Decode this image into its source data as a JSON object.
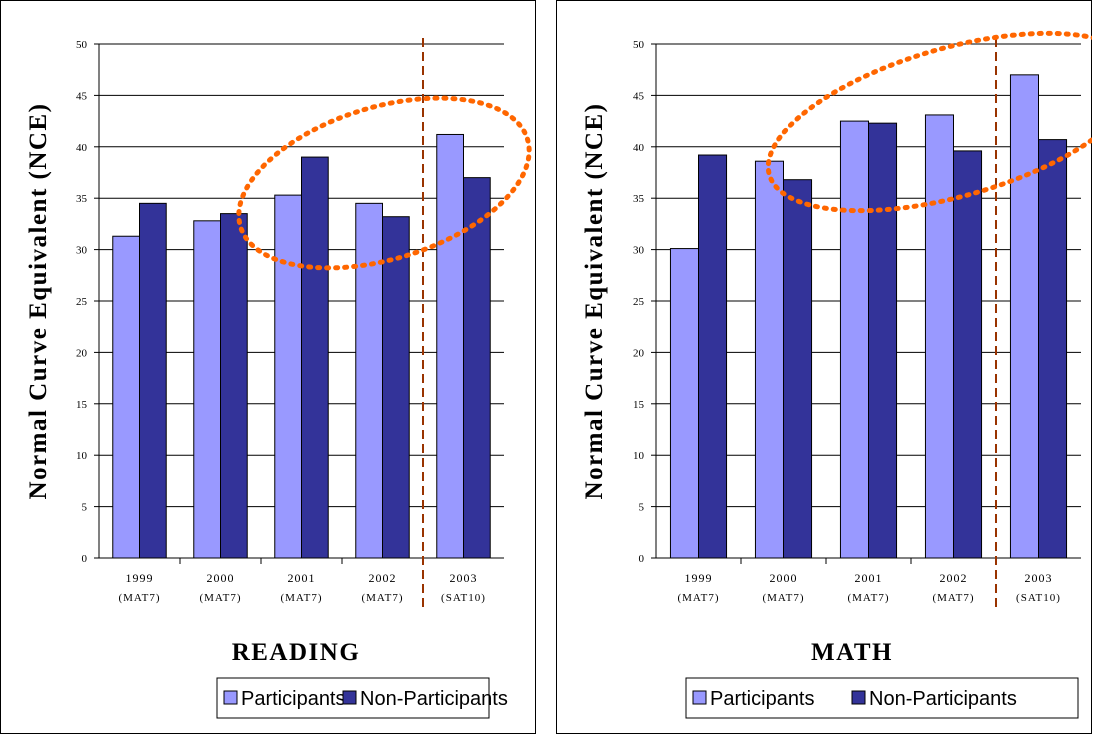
{
  "colors": {
    "participants": "#9999ff",
    "non_participants": "#333399",
    "divider": "#993300",
    "highlight_ellipse": "#ff6600",
    "grid": "#000000"
  },
  "legend": {
    "participants": "Participants",
    "non_participants": "Non-Participants"
  },
  "chart_data": [
    {
      "type": "bar",
      "title": "READING",
      "ylabel": "Normal Curve Equivalent (NCE)",
      "xlabel": "",
      "ylim": [
        0,
        50
      ],
      "yticks": [
        0,
        5,
        10,
        15,
        20,
        25,
        30,
        35,
        40,
        45,
        50
      ],
      "grid": true,
      "legend_position": "bottom",
      "categories": [
        {
          "year": "1999",
          "test": "(MAT7)"
        },
        {
          "year": "2000",
          "test": "(MAT7)"
        },
        {
          "year": "2001",
          "test": "(MAT7)"
        },
        {
          "year": "2002",
          "test": "(MAT7)"
        },
        {
          "year": "2003",
          "test": "(SAT10)"
        }
      ],
      "series": [
        {
          "name": "Participants",
          "values": [
            31.3,
            32.8,
            35.3,
            34.5,
            41.2
          ]
        },
        {
          "name": "Non-Participants",
          "values": [
            34.5,
            33.5,
            39.0,
            33.2,
            37.0
          ]
        }
      ],
      "divider_between_categories": [
        3,
        4
      ],
      "highlight": "dotted ellipse around 2001–2003"
    },
    {
      "type": "bar",
      "title": "MATH",
      "ylabel": "Normal Curve Equivalent (NCE)",
      "xlabel": "",
      "ylim": [
        0,
        50
      ],
      "yticks": [
        0,
        5,
        10,
        15,
        20,
        25,
        30,
        35,
        40,
        45,
        50
      ],
      "grid": true,
      "legend_position": "bottom",
      "categories": [
        {
          "year": "1999",
          "test": "(MAT7)"
        },
        {
          "year": "2000",
          "test": "(MAT7)"
        },
        {
          "year": "2001",
          "test": "(MAT7)"
        },
        {
          "year": "2002",
          "test": "(MAT7)"
        },
        {
          "year": "2003",
          "test": "(SAT10)"
        }
      ],
      "series": [
        {
          "name": "Participants",
          "values": [
            30.1,
            38.6,
            42.5,
            43.1,
            47.0
          ]
        },
        {
          "name": "Non-Participants",
          "values": [
            39.2,
            36.8,
            42.3,
            39.6,
            40.7
          ]
        }
      ],
      "divider_between_categories": [
        3,
        4
      ],
      "highlight": "dotted ellipse around 2001–2003"
    }
  ]
}
